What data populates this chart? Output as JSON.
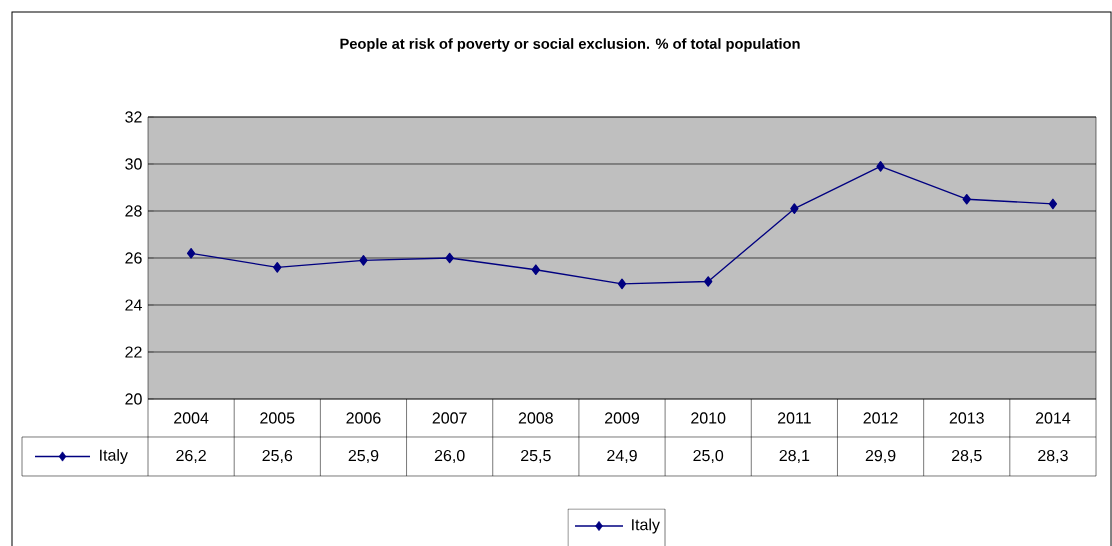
{
  "chart_data": {
    "type": "line",
    "title": "People at risk of poverty or social exclusion. % of total population",
    "categories": [
      "2004",
      "2005",
      "2006",
      "2007",
      "2008",
      "2009",
      "2010",
      "2011",
      "2012",
      "2013",
      "2014"
    ],
    "series": [
      {
        "name": "Italy",
        "color": "#000080",
        "values": [
          26.2,
          25.6,
          25.9,
          26.0,
          25.5,
          24.9,
          25.0,
          28.1,
          29.9,
          28.5,
          28.3
        ],
        "value_labels": [
          "26,2",
          "25,6",
          "25,9",
          "26,0",
          "25,5",
          "24,9",
          "25,0",
          "28,1",
          "29,9",
          "28,5",
          "28,3"
        ]
      }
    ],
    "ylim": [
      20,
      32
    ],
    "yticks": [
      20,
      22,
      24,
      26,
      28,
      30,
      32
    ],
    "grid": "y",
    "legend": "bottom",
    "marker": "diamond",
    "line_style": "solid"
  }
}
